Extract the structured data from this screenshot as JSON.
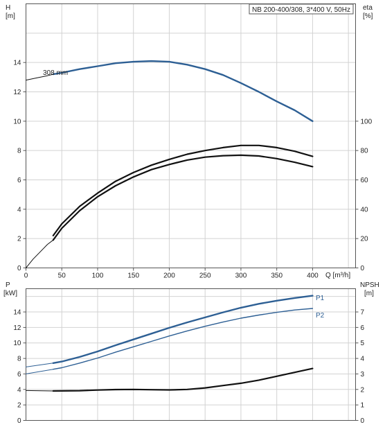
{
  "colors": {
    "blue": "#2d5f94",
    "black": "#111111",
    "grid": "#d2d2d2"
  },
  "chart_data": [
    {
      "type": "line",
      "title": "NB 200-400/308, 3*400 V, 50Hz",
      "xlabel": "Q [m³/h]",
      "ylabel_left": "H",
      "ylabel_left_unit": "[m]",
      "ylabel_right": "eta",
      "ylabel_right_unit": "[%]",
      "xlim": [
        0,
        460
      ],
      "ylim_left": [
        0,
        18
      ],
      "ylim_right": [
        0,
        180
      ],
      "x_ticks": [
        0,
        50,
        100,
        150,
        200,
        250,
        300,
        350,
        400
      ],
      "y_ticks_left": [
        0,
        2,
        4,
        6,
        8,
        10,
        12,
        14
      ],
      "y_ticks_right": [
        0,
        20,
        40,
        60,
        80,
        100
      ],
      "grid": true,
      "series": [
        {
          "name": "308 mm",
          "axis": "left",
          "color": "#2d5f94",
          "x": [
            38,
            50,
            75,
            100,
            125,
            150,
            175,
            200,
            225,
            250,
            275,
            300,
            325,
            350,
            375,
            400
          ],
          "values": [
            13.2,
            13.3,
            13.55,
            13.75,
            13.95,
            14.05,
            14.1,
            14.05,
            13.85,
            13.55,
            13.15,
            12.6,
            12.0,
            11.35,
            10.75,
            10.0
          ]
        },
        {
          "axis": "left",
          "style": "extrapolation",
          "color": "#111111",
          "x": [
            0,
            15,
            30,
            38
          ],
          "values": [
            12.8,
            12.95,
            13.1,
            13.2
          ]
        },
        {
          "axis": "right",
          "color": "#111111",
          "x": [
            38,
            50,
            75,
            100,
            125,
            150,
            175,
            200,
            225,
            250,
            275,
            300,
            325,
            350,
            375,
            400
          ],
          "values": [
            22,
            30,
            42,
            51,
            59,
            65,
            70,
            74,
            77.5,
            80,
            82,
            83.5,
            83.5,
            82,
            79.5,
            76
          ]
        },
        {
          "axis": "right",
          "color": "#111111",
          "x": [
            38,
            50,
            75,
            100,
            125,
            150,
            175,
            200,
            225,
            250,
            275,
            300,
            325,
            350,
            375,
            400
          ],
          "values": [
            19,
            27,
            39,
            48.5,
            56,
            62,
            67,
            70.5,
            73.5,
            75.5,
            76.5,
            76.8,
            76.3,
            74.5,
            72,
            69
          ]
        },
        {
          "axis": "right",
          "style": "extrapolation",
          "color": "#111111",
          "x": [
            0,
            10,
            20,
            30,
            38
          ],
          "values": [
            0,
            6,
            11,
            16,
            19
          ]
        }
      ]
    },
    {
      "type": "line",
      "ylabel_left": "P",
      "ylabel_left_unit": "[kW]",
      "ylabel_right": "NPSH",
      "ylabel_right_unit": "[m]",
      "xlim": [
        0,
        460
      ],
      "ylim_left": [
        0,
        17
      ],
      "ylim_right": [
        0,
        8.5
      ],
      "y_ticks_left": [
        0,
        2,
        4,
        6,
        8,
        10,
        12,
        14
      ],
      "y_ticks_right": [
        0,
        1,
        2,
        3,
        4,
        5,
        6,
        7
      ],
      "grid": true,
      "series": [
        {
          "name": "P1",
          "axis": "left",
          "color": "#2d5f94",
          "x": [
            38,
            50,
            75,
            100,
            125,
            150,
            175,
            200,
            225,
            250,
            275,
            300,
            325,
            350,
            375,
            400
          ],
          "values": [
            7.4,
            7.6,
            8.2,
            8.9,
            9.7,
            10.45,
            11.2,
            11.95,
            12.65,
            13.3,
            13.95,
            14.55,
            15.05,
            15.45,
            15.8,
            16.1
          ]
        },
        {
          "name": "P2",
          "axis": "left",
          "color": "#2d5f94",
          "x": [
            38,
            50,
            75,
            100,
            125,
            150,
            175,
            200,
            225,
            250,
            275,
            300,
            325,
            350,
            375,
            400
          ],
          "values": [
            6.6,
            6.8,
            7.4,
            8.05,
            8.8,
            9.5,
            10.2,
            10.9,
            11.55,
            12.15,
            12.7,
            13.2,
            13.6,
            13.95,
            14.25,
            14.45
          ]
        },
        {
          "axis": "left",
          "style": "extrapolation",
          "color": "#2d5f94",
          "x": [
            0,
            38
          ],
          "values": [
            6.9,
            7.4
          ]
        },
        {
          "axis": "left",
          "style": "extrapolation",
          "color": "#2d5f94",
          "x": [
            0,
            38
          ],
          "values": [
            6.0,
            6.6
          ]
        },
        {
          "axis": "right",
          "color": "#111111",
          "x": [
            38,
            75,
            100,
            125,
            150,
            175,
            200,
            225,
            250,
            275,
            300,
            325,
            350,
            375,
            400
          ],
          "values": [
            1.9,
            1.92,
            1.96,
            1.99,
            2.0,
            1.98,
            1.97,
            2.0,
            2.1,
            2.25,
            2.4,
            2.6,
            2.85,
            3.1,
            3.35
          ]
        },
        {
          "axis": "right",
          "style": "extrapolation",
          "color": "#111111",
          "x": [
            0,
            38
          ],
          "values": [
            1.93,
            1.9
          ]
        }
      ]
    }
  ]
}
